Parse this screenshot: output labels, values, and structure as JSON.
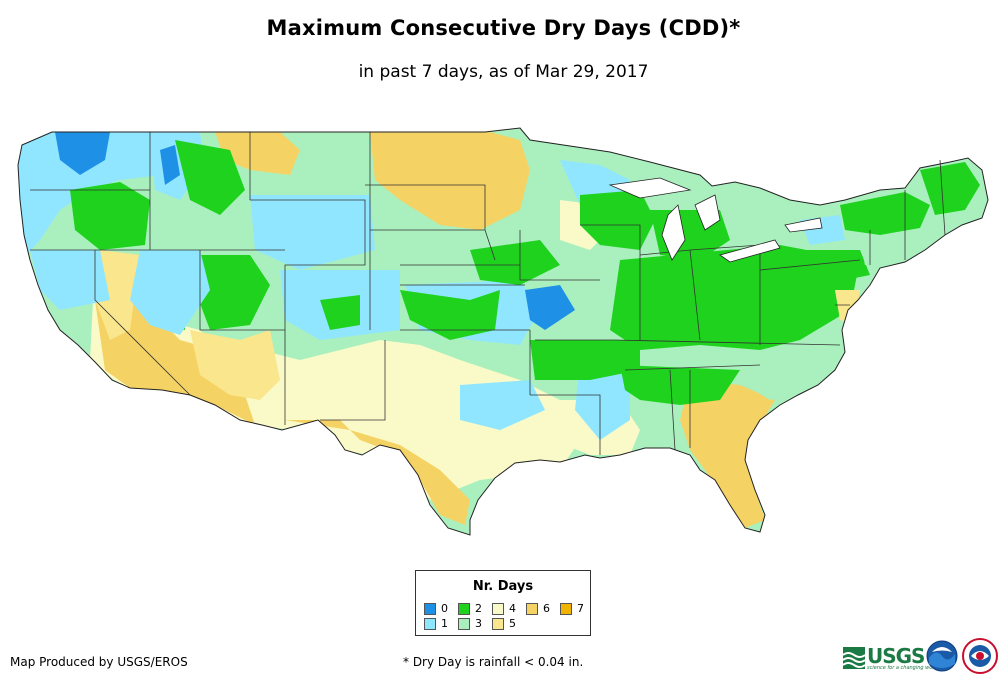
{
  "title": "Maximum Consecutive Dry Days (CDD)*",
  "subtitle": "in past 7 days, as of Mar 29, 2017",
  "legend": {
    "title": "Nr. Days",
    "items": [
      {
        "label": "0",
        "color": "#1e90e6"
      },
      {
        "label": "1",
        "color": "#90e6ff"
      },
      {
        "label": "2",
        "color": "#1ed21e"
      },
      {
        "label": "3",
        "color": "#aaf0be"
      },
      {
        "label": "4",
        "color": "#fafac8"
      },
      {
        "label": "5",
        "color": "#fae68c"
      },
      {
        "label": "6",
        "color": "#f5d264"
      },
      {
        "label": "7",
        "color": "#f0b400"
      }
    ]
  },
  "footer": {
    "producer": "Map Produced by USGS/EROS",
    "note": "* Dry Day is rainfall < 0.04 in."
  },
  "logos": {
    "usgs_word": "USGS",
    "usgs_tagline": "science for a changing world"
  }
}
